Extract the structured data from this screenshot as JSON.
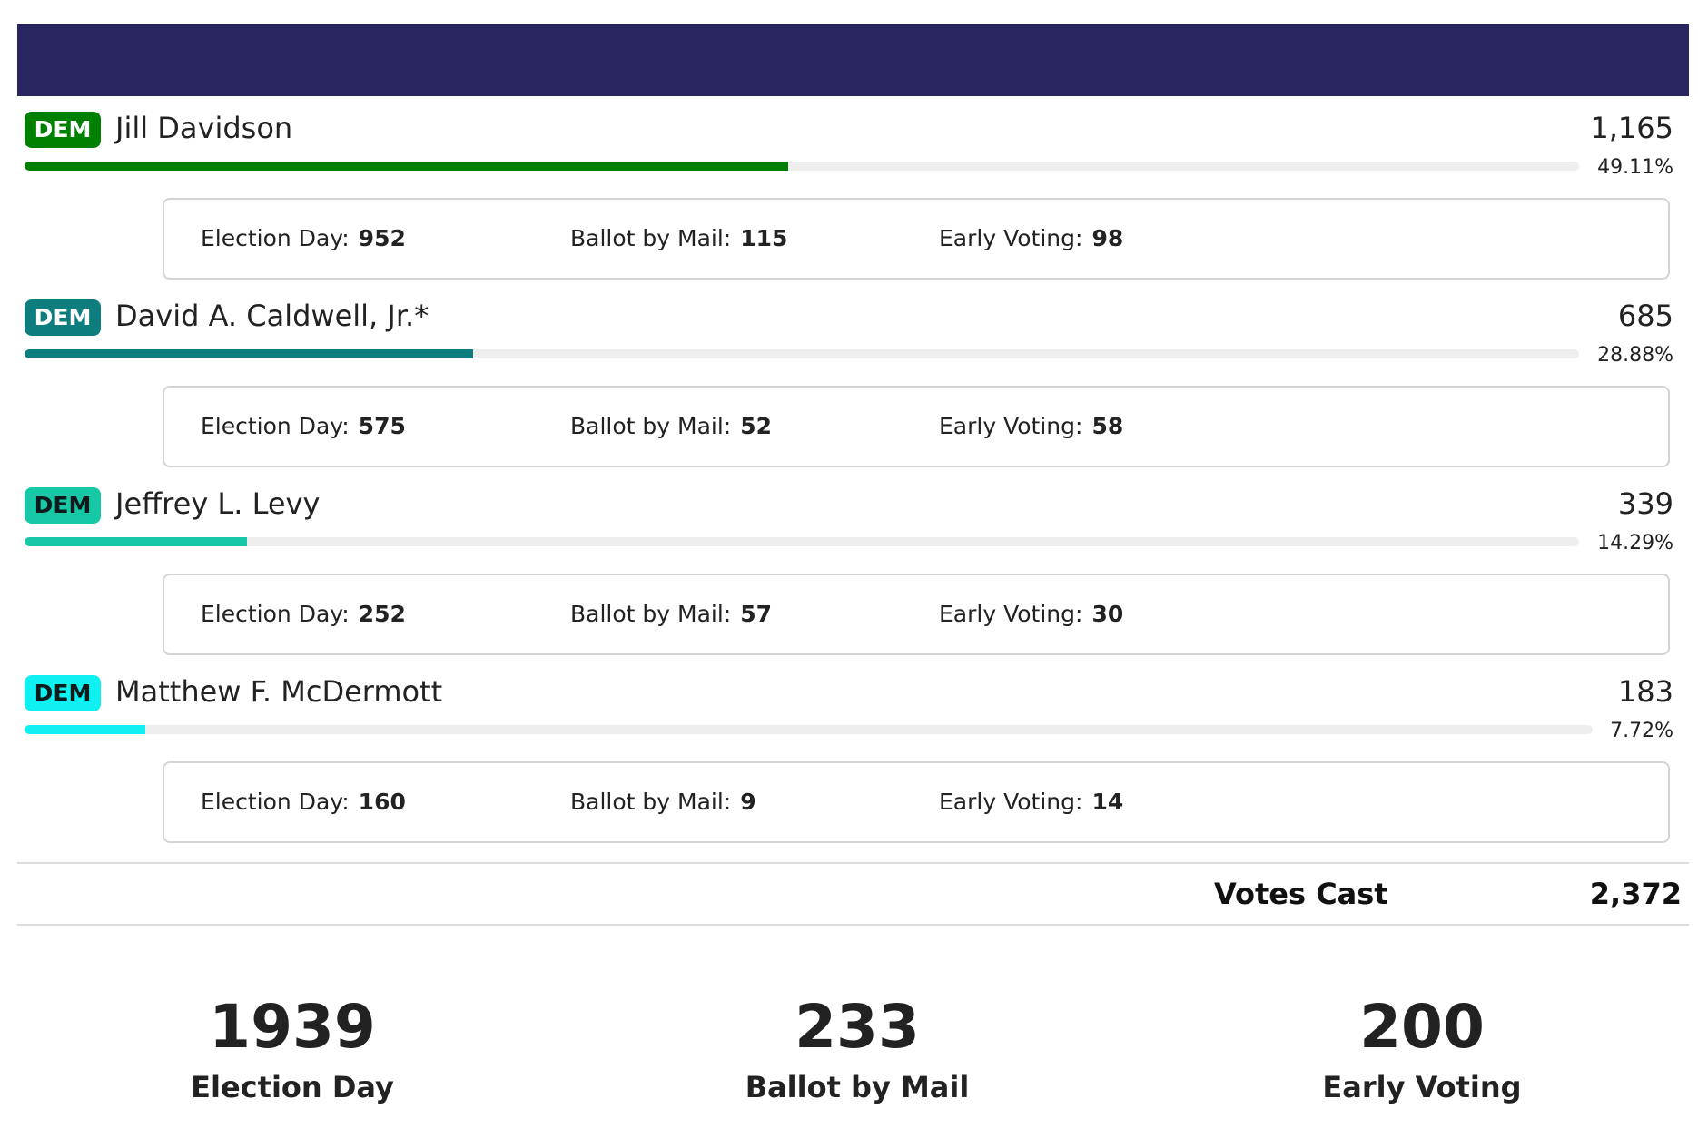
{
  "colors": {
    "header": "#282560"
  },
  "candidates": [
    {
      "party": "DEM",
      "name": "Jill Davidson",
      "votes": "1,165",
      "percent_label": "49.11%",
      "percent": 49.11,
      "color": "#008000",
      "breakdown": {
        "election_day_label": "Election Day:",
        "election_day": "952",
        "mail_label": "Ballot by Mail:",
        "mail": "115",
        "early_label": "Early Voting:",
        "early": "98"
      }
    },
    {
      "party": "DEM",
      "name": "David A. Caldwell, Jr.*",
      "votes": "685",
      "percent_label": "28.88%",
      "percent": 28.88,
      "color": "#0d7d7d",
      "breakdown": {
        "election_day_label": "Election Day:",
        "election_day": "575",
        "mail_label": "Ballot by Mail:",
        "mail": "52",
        "early_label": "Early Voting:",
        "early": "58"
      }
    },
    {
      "party": "DEM",
      "name": "Jeffrey L. Levy",
      "votes": "339",
      "percent_label": "14.29%",
      "percent": 14.29,
      "color": "#17c8a6",
      "breakdown": {
        "election_day_label": "Election Day:",
        "election_day": "252",
        "mail_label": "Ballot by Mail:",
        "mail": "57",
        "early_label": "Early Voting:",
        "early": "30"
      }
    },
    {
      "party": "DEM",
      "name": "Matthew F. McDermott",
      "votes": "183",
      "percent_label": "7.72%",
      "percent": 7.72,
      "color": "#0ff0f0",
      "breakdown": {
        "election_day_label": "Election Day:",
        "election_day": "160",
        "mail_label": "Ballot by Mail:",
        "mail": "9",
        "early_label": "Early Voting:",
        "early": "14"
      }
    }
  ],
  "votes_cast": {
    "label": "Votes Cast",
    "value": "2,372"
  },
  "summary": [
    {
      "number": "1939",
      "label": "Election Day"
    },
    {
      "number": "233",
      "label": "Ballot by Mail"
    },
    {
      "number": "200",
      "label": "Early Voting"
    }
  ]
}
